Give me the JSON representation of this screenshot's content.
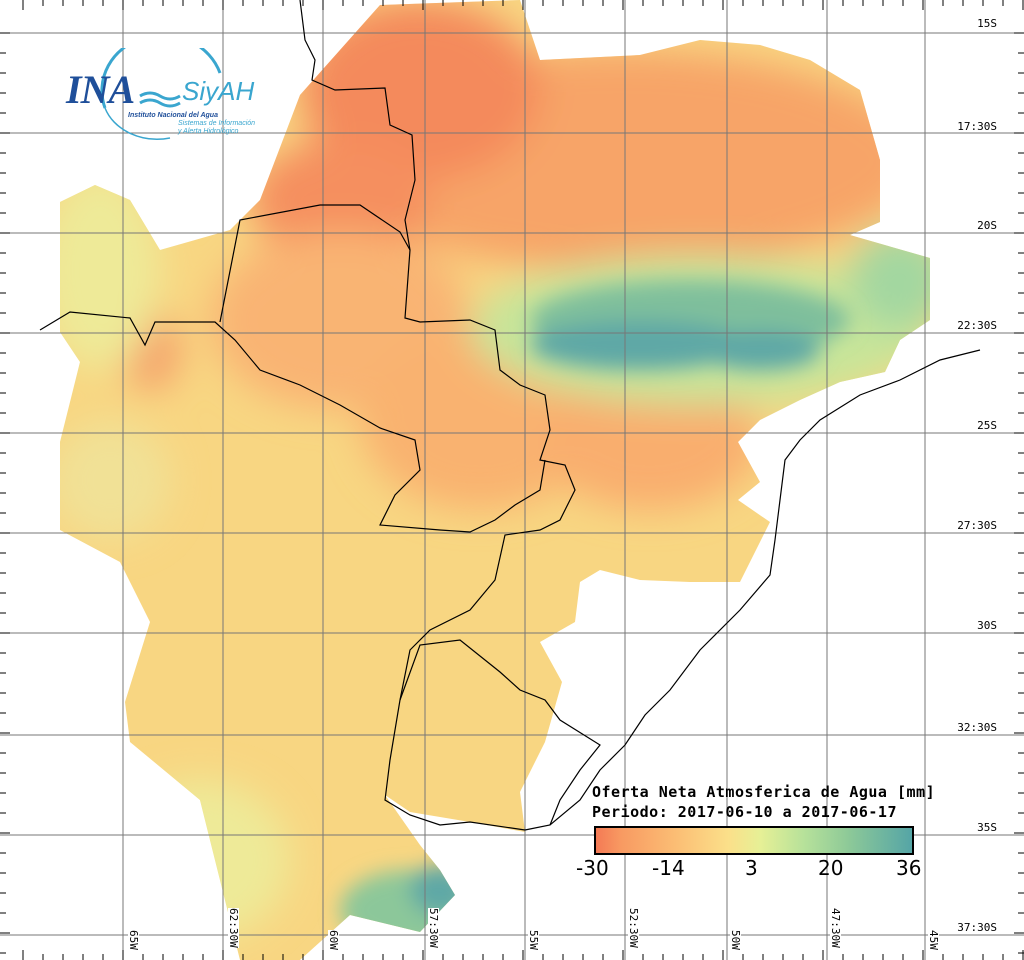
{
  "logo": {
    "acronym": "INA",
    "system": "SiyAH",
    "institute": "Instituto Nacional del Agua",
    "system_line1": "Sistemas de Información",
    "system_line2": "y Alerta Hidrológico"
  },
  "legend": {
    "title": "Oferta Neta Atmosferica de Agua [mm]",
    "period": "Periodo: 2017-06-10 a 2017-06-17",
    "ticks": [
      "-30",
      "-14",
      "3",
      "20",
      "36"
    ],
    "colors": [
      "#f47a55",
      "#fbbd74",
      "#e6f096",
      "#8dc998",
      "#55a5a6"
    ]
  },
  "lat_labels": [
    "15S",
    "17:30S",
    "20S",
    "22:30S",
    "25S",
    "27:30S",
    "30S",
    "32:30S",
    "35S",
    "37:30S"
  ],
  "lon_labels": [
    "65W",
    "62:30W",
    "60W",
    "57:30W",
    "55W",
    "52:30W",
    "50W",
    "47:30W",
    "45W"
  ]
}
